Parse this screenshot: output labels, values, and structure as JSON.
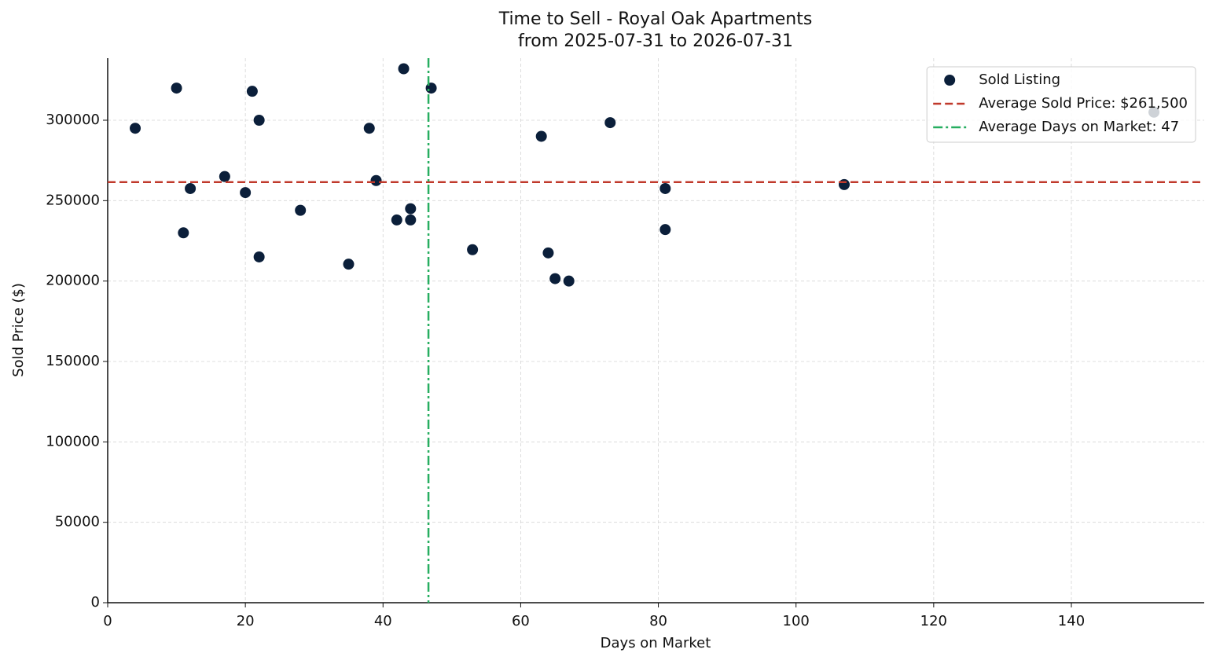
{
  "chart_data": {
    "type": "scatter",
    "title": "Time to Sell - Royal Oak Apartments",
    "subtitle": "from 2025-07-31 to 2026-07-31",
    "x_label": "Days on Market",
    "y_label": "Sold Price ($)",
    "series": [
      {
        "name": "Sold Listing",
        "color": "#0b1f3a",
        "x": [
          4,
          10,
          11,
          12,
          17,
          20,
          21,
          22,
          22,
          28,
          35,
          38,
          39,
          42,
          43,
          44,
          44,
          47,
          53,
          63,
          64,
          65,
          67,
          73,
          81,
          81,
          107,
          152
        ],
        "values": [
          295000,
          320000,
          230000,
          257500,
          265000,
          255000,
          318000,
          300000,
          215000,
          244000,
          210500,
          295000,
          262500,
          238000,
          332000,
          245000,
          238000,
          320000,
          219500,
          290000,
          217500,
          201500,
          200000,
          298500,
          257500,
          232000,
          260000,
          305000
        ]
      }
    ],
    "hlines": [
      {
        "name": "Average Sold Price: $261,500",
        "color": "#c0392b",
        "value": 261500,
        "style": "dashed"
      }
    ],
    "vlines": [
      {
        "name": "Average Days on Market: 47",
        "color": "#27ae60",
        "value": 46.6,
        "style": "dashdot"
      }
    ],
    "xlim": [
      0,
      159.3
    ],
    "ylim": [
      0,
      338600
    ],
    "xticks": [
      0,
      20,
      40,
      60,
      80,
      100,
      120,
      140
    ],
    "yticks": [
      0,
      50000,
      100000,
      150000,
      200000,
      250000,
      300000
    ],
    "grid": true,
    "legend": "upper right"
  }
}
